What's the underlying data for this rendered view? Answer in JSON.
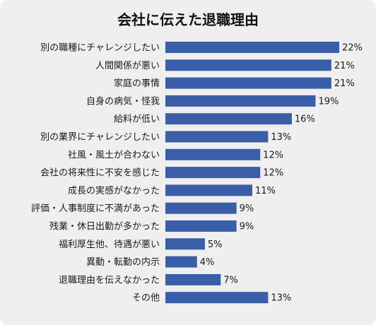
{
  "chart_data": {
    "type": "bar",
    "orientation": "horizontal",
    "title": "会社に伝えた退職理由",
    "xlabel": "",
    "ylabel": "",
    "xlim": [
      0,
      22
    ],
    "grid": false,
    "legend": "none",
    "categories": [
      "別の職種にチャレンジしたい",
      "人間関係が悪い",
      "家庭の事情",
      "自身の病気・怪我",
      "給料が低い",
      "別の業界にチャレンジしたい",
      "社風・風土が合わない",
      "会社の将来性に不安を感じた",
      "成長の実感がなかった",
      "評価・人事制度に不満があった",
      "残業・休日出勤が多かった",
      "福利厚生他、待遇が悪い",
      "異動・転勤の内示",
      "退職理由を伝えなかった",
      "その他"
    ],
    "values": [
      22,
      21,
      21,
      19,
      16,
      13,
      12,
      12,
      11,
      9,
      9,
      5,
      4,
      7,
      13
    ],
    "value_labels": [
      "22%",
      "21%",
      "21%",
      "19%",
      "16%",
      "13%",
      "12%",
      "12%",
      "11%",
      "9%",
      "9%",
      "5%",
      "4%",
      "7%",
      "13%"
    ],
    "bar_color": "#3a5ea8"
  }
}
